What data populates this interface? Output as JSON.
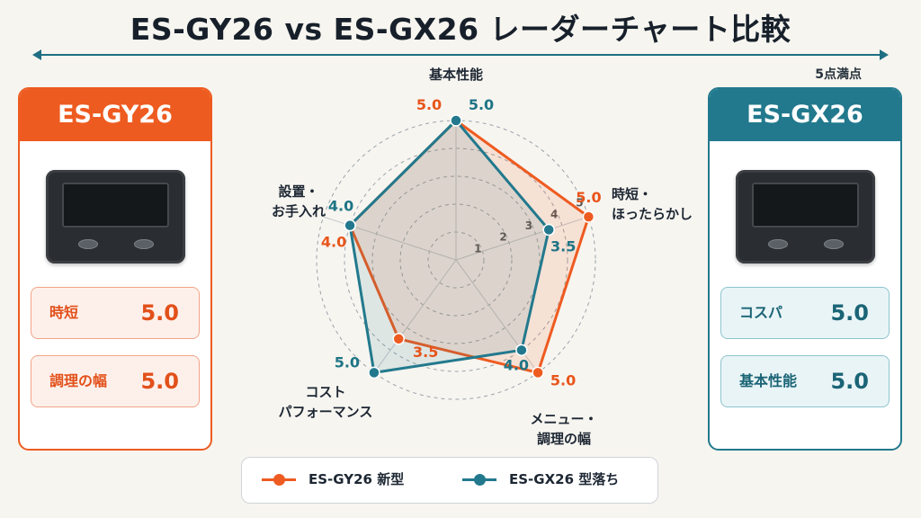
{
  "title": "ES-GY26 vs ES-GX26 レーダーチャート比較",
  "scale_note": "5点満点",
  "left_card": {
    "name": "ES-GY26",
    "metrics": [
      {
        "label": "時短",
        "value": "5.0"
      },
      {
        "label": "調理の幅",
        "value": "5.0"
      }
    ]
  },
  "right_card": {
    "name": "ES-GX26",
    "metrics": [
      {
        "label": "コスパ",
        "value": "5.0"
      },
      {
        "label": "基本性能",
        "value": "5.0"
      }
    ]
  },
  "legend": {
    "a": "ES-GY26 新型",
    "b": "ES-GX26 型落ち"
  },
  "colors": {
    "gy26": "#ee5b20",
    "gx26": "#22798d"
  },
  "chart_data": {
    "type": "radar",
    "axes": [
      "基本性能",
      "時短・ほったらかし",
      "メニュー・調理の幅",
      "コスト パフォーマンス",
      "設置・お手入れ"
    ],
    "axis_label_lines": [
      [
        "基本性能"
      ],
      [
        "時短・",
        "ほったらかし"
      ],
      [
        "メニュー・",
        "調理の幅"
      ],
      [
        "コスト",
        "パフォーマンス"
      ],
      [
        "設置・",
        "お手入れ"
      ]
    ],
    "rmax": 5,
    "ticks": [
      1,
      2,
      3,
      4,
      5
    ],
    "tick_labels": [
      "1",
      "2",
      "3",
      "4",
      "5"
    ],
    "series": [
      {
        "name": "ES-GY26 新型",
        "values": [
          5.0,
          5.0,
          5.0,
          3.5,
          4.0
        ],
        "labels": [
          "5.0",
          "5.0",
          "5.0",
          "3.5",
          "4.0"
        ]
      },
      {
        "name": "ES-GX26 型落ち",
        "values": [
          5.0,
          3.5,
          4.0,
          5.0,
          4.0
        ],
        "labels": [
          "5.0",
          "3.5",
          "4.0",
          "5.0",
          "4.0"
        ]
      }
    ]
  }
}
